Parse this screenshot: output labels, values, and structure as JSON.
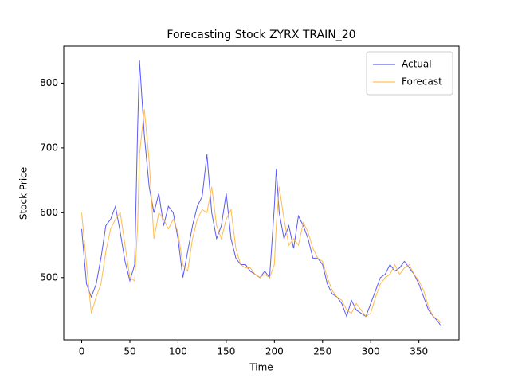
{
  "chart_data": {
    "type": "line",
    "title": "Forecasting Stock ZYRX TRAIN_20",
    "xlabel": "Time",
    "ylabel": "Stock Price",
    "x": [
      0,
      5,
      10,
      15,
      20,
      25,
      30,
      35,
      40,
      45,
      50,
      55,
      58,
      60,
      65,
      70,
      75,
      80,
      85,
      90,
      95,
      100,
      105,
      110,
      115,
      120,
      125,
      130,
      135,
      140,
      145,
      150,
      155,
      160,
      165,
      170,
      175,
      180,
      185,
      190,
      195,
      200,
      202,
      205,
      210,
      215,
      220,
      225,
      230,
      235,
      240,
      245,
      250,
      255,
      260,
      265,
      270,
      275,
      280,
      285,
      290,
      295,
      300,
      305,
      310,
      315,
      320,
      325,
      330,
      335,
      340,
      345,
      350,
      355,
      360,
      365,
      370,
      373
    ],
    "series": [
      {
        "name": "Actual",
        "color": "#4040ee",
        "values": [
          575,
          490,
          470,
          490,
          530,
          580,
          590,
          610,
          570,
          525,
          495,
          520,
          730,
          835,
          720,
          640,
          600,
          630,
          580,
          610,
          600,
          560,
          500,
          540,
          580,
          610,
          625,
          690,
          600,
          560,
          580,
          630,
          560,
          530,
          520,
          520,
          510,
          505,
          500,
          510,
          500,
          610,
          668,
          600,
          560,
          580,
          545,
          595,
          580,
          560,
          530,
          530,
          520,
          490,
          475,
          470,
          460,
          440,
          465,
          450,
          445,
          440,
          460,
          480,
          500,
          505,
          520,
          510,
          515,
          525,
          515,
          505,
          490,
          470,
          450,
          440,
          432,
          425
        ]
      },
      {
        "name": "Forecast",
        "color": "#ffb030",
        "values": [
          600,
          520,
          445,
          470,
          490,
          540,
          575,
          590,
          600,
          550,
          500,
          495,
          580,
          690,
          760,
          680,
          560,
          600,
          590,
          575,
          590,
          570,
          520,
          510,
          560,
          590,
          605,
          600,
          640,
          580,
          560,
          590,
          605,
          545,
          520,
          515,
          515,
          505,
          500,
          505,
          500,
          520,
          580,
          640,
          590,
          550,
          560,
          550,
          585,
          570,
          545,
          530,
          525,
          500,
          480,
          470,
          465,
          450,
          445,
          460,
          450,
          440,
          445,
          470,
          490,
          500,
          505,
          520,
          505,
          515,
          520,
          505,
          495,
          480,
          455,
          440,
          435,
          430
        ]
      }
    ],
    "xlim": [
      -18.65,
      391.65
    ],
    "ylim": [
      404,
      857
    ],
    "xticks": [
      0,
      50,
      100,
      150,
      200,
      250,
      300,
      350
    ],
    "yticks": [
      500,
      600,
      700,
      800
    ],
    "legend": "upper right"
  }
}
